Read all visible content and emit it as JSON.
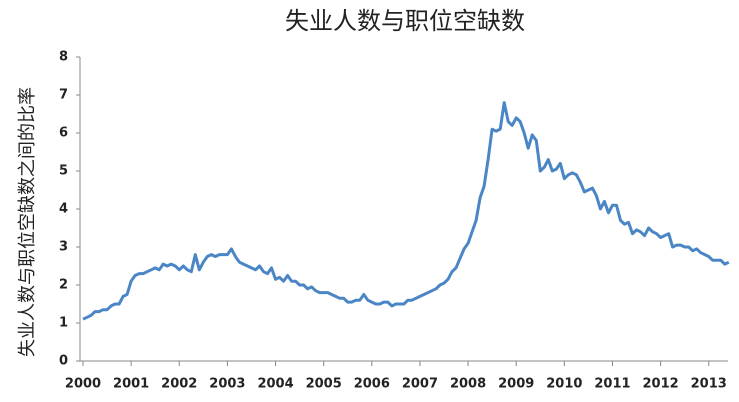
{
  "chart_data": {
    "type": "line",
    "title": "失业人数与职位空缺数",
    "y_label": "失业人数与职位空缺数之间的比率",
    "xlim": [
      2000,
      2013.4
    ],
    "xticks": [
      2000,
      2001,
      2002,
      2003,
      2004,
      2005,
      2006,
      2007,
      2008,
      2009,
      2010,
      2011,
      2012,
      2013
    ],
    "ylim": [
      0,
      8
    ],
    "yticks": [
      0,
      1,
      2,
      3,
      4,
      5,
      6,
      7,
      8
    ],
    "grid": false,
    "x": [
      2000,
      2000.083,
      2000.167,
      2000.25,
      2000.333,
      2000.417,
      2000.5,
      2000.583,
      2000.667,
      2000.75,
      2000.833,
      2000.917,
      2001,
      2001.083,
      2001.167,
      2001.25,
      2001.333,
      2001.417,
      2001.5,
      2001.583,
      2001.667,
      2001.75,
      2001.833,
      2001.917,
      2002,
      2002.083,
      2002.167,
      2002.25,
      2002.333,
      2002.417,
      2002.5,
      2002.583,
      2002.667,
      2002.75,
      2002.833,
      2002.917,
      2003,
      2003.083,
      2003.167,
      2003.25,
      2003.333,
      2003.417,
      2003.5,
      2003.583,
      2003.667,
      2003.75,
      2003.833,
      2003.917,
      2004,
      2004.083,
      2004.167,
      2004.25,
      2004.333,
      2004.417,
      2004.5,
      2004.583,
      2004.667,
      2004.75,
      2004.833,
      2004.917,
      2005,
      2005.083,
      2005.167,
      2005.25,
      2005.333,
      2005.417,
      2005.5,
      2005.583,
      2005.667,
      2005.75,
      2005.833,
      2005.917,
      2006,
      2006.083,
      2006.167,
      2006.25,
      2006.333,
      2006.417,
      2006.5,
      2006.583,
      2006.667,
      2006.75,
      2006.833,
      2006.917,
      2007,
      2007.083,
      2007.167,
      2007.25,
      2007.333,
      2007.417,
      2007.5,
      2007.583,
      2007.667,
      2007.75,
      2007.833,
      2007.917,
      2008,
      2008.083,
      2008.167,
      2008.25,
      2008.333,
      2008.417,
      2008.5,
      2008.583,
      2008.667,
      2008.75,
      2008.833,
      2008.917,
      2009,
      2009.083,
      2009.167,
      2009.25,
      2009.333,
      2009.417,
      2009.5,
      2009.583,
      2009.667,
      2009.75,
      2009.833,
      2009.917,
      2010,
      2010.083,
      2010.167,
      2010.25,
      2010.333,
      2010.417,
      2010.5,
      2010.583,
      2010.667,
      2010.75,
      2010.833,
      2010.917,
      2011,
      2011.083,
      2011.167,
      2011.25,
      2011.333,
      2011.417,
      2011.5,
      2011.583,
      2011.667,
      2011.75,
      2011.833,
      2011.917,
      2012,
      2012.083,
      2012.167,
      2012.25,
      2012.333,
      2012.417,
      2012.5,
      2012.583,
      2012.667,
      2012.75,
      2012.833,
      2012.917,
      2013,
      2013.083,
      2013.167,
      2013.25,
      2013.333,
      2013.417
    ],
    "series": [
      {
        "color": "#4a86c5",
        "values": [
          1.1,
          1.15,
          1.2,
          1.3,
          1.3,
          1.35,
          1.35,
          1.45,
          1.5,
          1.5,
          1.7,
          1.75,
          2.1,
          2.25,
          2.3,
          2.3,
          2.35,
          2.4,
          2.45,
          2.4,
          2.55,
          2.5,
          2.55,
          2.5,
          2.4,
          2.5,
          2.4,
          2.35,
          2.8,
          2.4,
          2.6,
          2.75,
          2.8,
          2.75,
          2.8,
          2.8,
          2.8,
          2.95,
          2.75,
          2.6,
          2.55,
          2.5,
          2.45,
          2.4,
          2.5,
          2.35,
          2.3,
          2.45,
          2.15,
          2.2,
          2.1,
          2.25,
          2.1,
          2.1,
          2.0,
          2.0,
          1.9,
          1.95,
          1.85,
          1.8,
          1.8,
          1.8,
          1.75,
          1.7,
          1.65,
          1.65,
          1.55,
          1.55,
          1.6,
          1.6,
          1.75,
          1.6,
          1.55,
          1.5,
          1.5,
          1.55,
          1.55,
          1.45,
          1.5,
          1.5,
          1.5,
          1.6,
          1.6,
          1.65,
          1.7,
          1.75,
          1.8,
          1.85,
          1.9,
          2.0,
          2.05,
          2.15,
          2.35,
          2.45,
          2.7,
          2.95,
          3.1,
          3.4,
          3.7,
          4.3,
          4.6,
          5.3,
          6.1,
          6.05,
          6.1,
          6.8,
          6.3,
          6.2,
          6.4,
          6.3,
          6.0,
          5.6,
          5.95,
          5.8,
          5.0,
          5.1,
          5.3,
          5.0,
          5.05,
          5.2,
          4.8,
          4.9,
          4.95,
          4.9,
          4.7,
          4.45,
          4.5,
          4.55,
          4.35,
          4.0,
          4.2,
          3.9,
          4.1,
          4.1,
          3.7,
          3.6,
          3.65,
          3.35,
          3.45,
          3.4,
          3.3,
          3.5,
          3.4,
          3.35,
          3.25,
          3.3,
          3.35,
          3.0,
          3.05,
          3.05,
          3.0,
          3.0,
          2.9,
          2.95,
          2.85,
          2.8,
          2.75,
          2.65,
          2.65,
          2.65,
          2.55,
          2.6
        ]
      }
    ]
  }
}
